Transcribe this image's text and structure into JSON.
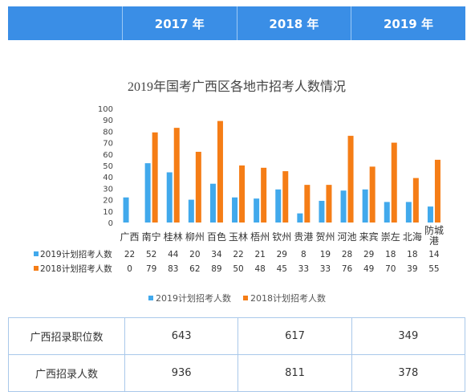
{
  "header": {
    "years": [
      "2017 年",
      "2018 年",
      "2019 年"
    ]
  },
  "colors": {
    "header_bg": "#3a8ee6",
    "series_2019": "#41a9ec",
    "series_2018": "#f57d16",
    "table_border": "#a9c8ea"
  },
  "chart_data": {
    "type": "bar",
    "title": "2019年国考广西区各地市招考人数情况",
    "categories": [
      "广西",
      "南宁",
      "桂林",
      "柳州",
      "百色",
      "玉林",
      "梧州",
      "钦州",
      "贵港",
      "贺州",
      "河池",
      "来宾",
      "崇左",
      "北海",
      "防城港"
    ],
    "series": [
      {
        "name": "2019计划招考人数",
        "values": [
          22,
          52,
          44,
          20,
          34,
          22,
          21,
          29,
          8,
          19,
          28,
          29,
          18,
          18,
          14
        ]
      },
      {
        "name": "2018计划招考人数",
        "values": [
          0,
          79,
          83,
          62,
          89,
          50,
          48,
          45,
          33,
          33,
          76,
          49,
          70,
          39,
          55
        ]
      }
    ],
    "ylim": [
      0,
      100
    ],
    "yticks": [
      0,
      10,
      20,
      30,
      40,
      50,
      60,
      70,
      80,
      90,
      100
    ],
    "xlabel": "",
    "ylabel": "",
    "grid": false,
    "legend": "bottom"
  },
  "summary_table": {
    "rows": [
      {
        "label": "广西招录职位数",
        "values": [
          "643",
          "617",
          "349"
        ]
      },
      {
        "label": "广西招录人数",
        "values": [
          "936",
          "811",
          "378"
        ]
      }
    ]
  }
}
